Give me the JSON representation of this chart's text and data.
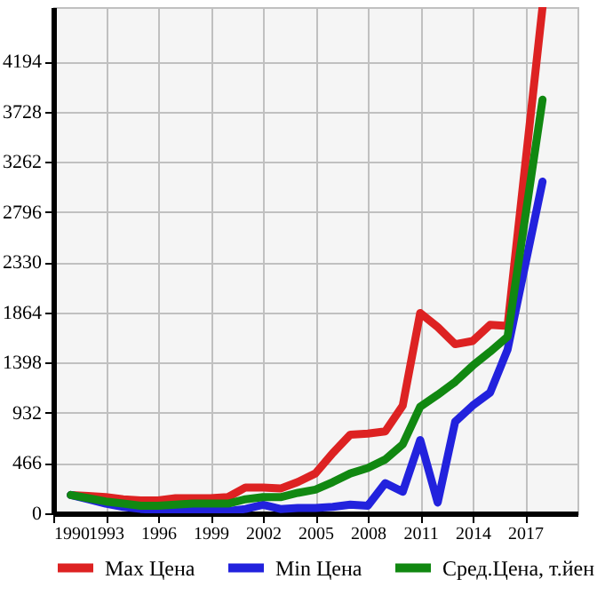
{
  "chart_data": {
    "type": "line",
    "x": [
      1991,
      1992,
      1993,
      1994,
      1995,
      1996,
      1997,
      1998,
      1999,
      2000,
      2001,
      2002,
      2003,
      2004,
      2005,
      2006,
      2007,
      2008,
      2009,
      2010,
      2011,
      2012,
      2013,
      2014,
      2015,
      2016,
      2018
    ],
    "series": [
      {
        "name": "Max Цена",
        "color": "#dd2222",
        "values": [
          170,
          160,
          150,
          130,
          120,
          120,
          140,
          140,
          140,
          150,
          240,
          240,
          230,
          290,
          370,
          560,
          730,
          740,
          760,
          1000,
          1860,
          1730,
          1570,
          1600,
          1750,
          1740,
          4700
        ]
      },
      {
        "name": "Min Цена",
        "color": "#2222dd",
        "values": [
          170,
          130,
          90,
          60,
          40,
          30,
          30,
          20,
          20,
          20,
          40,
          80,
          40,
          50,
          50,
          60,
          80,
          70,
          280,
          200,
          680,
          100,
          850,
          1000,
          1120,
          1520,
          3080
        ]
      },
      {
        "name": "Сред.Цена, т.йен",
        "color": "#118811",
        "values": [
          170,
          140,
          110,
          90,
          70,
          70,
          80,
          90,
          90,
          90,
          130,
          150,
          150,
          190,
          220,
          290,
          370,
          420,
          500,
          640,
          990,
          1100,
          1220,
          1370,
          1500,
          1640,
          3840
        ]
      }
    ],
    "xlim": [
      1990,
      2020
    ],
    "xticks": [
      1990,
      1993,
      1996,
      1999,
      2002,
      2005,
      2008,
      2011,
      2014,
      2017
    ],
    "ylim": [
      0,
      4700
    ],
    "yticks": [
      0,
      466,
      932,
      1398,
      1864,
      2330,
      2796,
      3262,
      3728,
      4194
    ],
    "grid": true,
    "legend": "bottom",
    "marker": "none",
    "line_style": "solid"
  }
}
